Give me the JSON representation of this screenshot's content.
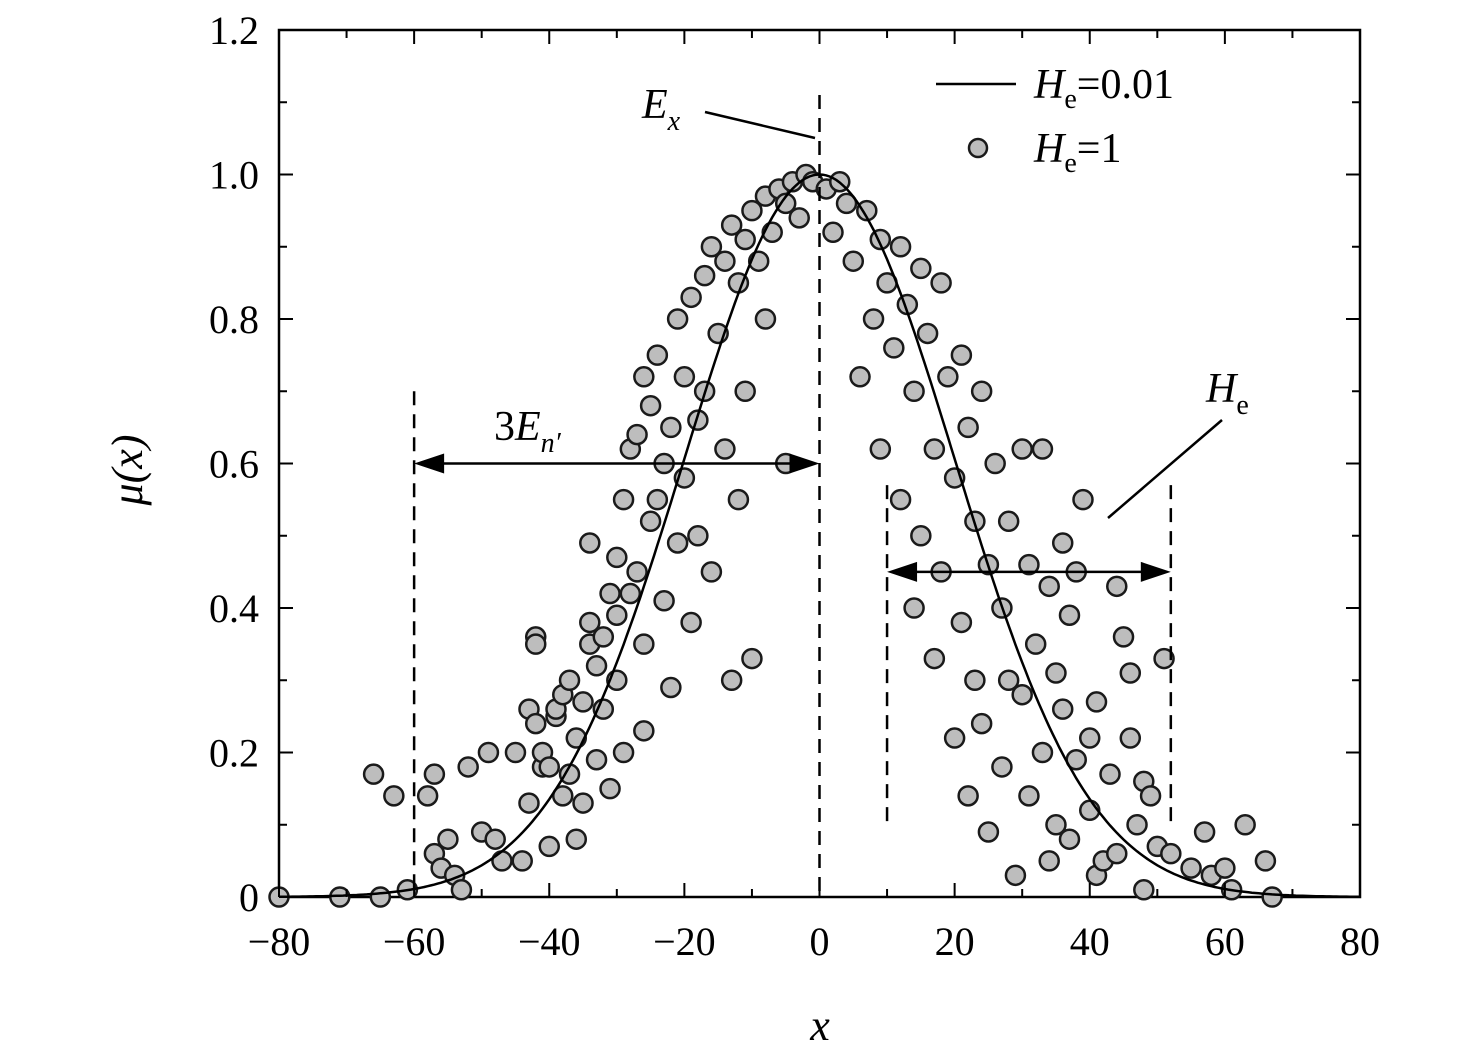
{
  "chart_data": {
    "type": "scatter",
    "xlabel": "x",
    "ylabel": "μ(x)",
    "xlim": [
      -80,
      80
    ],
    "ylim": [
      0,
      1.2
    ],
    "x_ticks": [
      -80,
      -60,
      -40,
      -20,
      0,
      20,
      40,
      60,
      80
    ],
    "x_tick_labels": [
      "−80",
      "−60",
      "−40",
      "−20",
      "0",
      "20",
      "40",
      "60",
      "80"
    ],
    "y_ticks": [
      0,
      0.2,
      0.4,
      0.6,
      0.8,
      1.0,
      1.2
    ],
    "y_tick_labels": [
      "0",
      "0.2",
      "0.4",
      "0.6",
      "0.8",
      "1.0",
      "1.2"
    ],
    "grid": false,
    "legend_position": "top-right",
    "series": [
      {
        "name": "He=0.01",
        "name_parts": {
          "var": "H",
          "sub": "e",
          "rest": "=0.01"
        },
        "kind": "line",
        "function": "exp(-x^2/(2*20^2))",
        "Ex": 0,
        "En": 20
      },
      {
        "name": "He=1",
        "name_parts": {
          "var": "H",
          "sub": "e",
          "rest": "=1"
        },
        "kind": "scatter",
        "marker_fill": "#bdbdbd",
        "marker_edge": "#1a1a1a",
        "points": [
          [
            -80,
            0.0
          ],
          [
            -71,
            0.0
          ],
          [
            -65,
            0.0
          ],
          [
            -61,
            0.01
          ],
          [
            -63,
            0.14
          ],
          [
            -66,
            0.17
          ],
          [
            -58,
            0.14
          ],
          [
            -57,
            0.17
          ],
          [
            -57,
            0.06
          ],
          [
            -56,
            0.04
          ],
          [
            -55,
            0.08
          ],
          [
            -54,
            0.03
          ],
          [
            -53,
            0.01
          ],
          [
            -52,
            0.18
          ],
          [
            -50,
            0.09
          ],
          [
            -49,
            0.2
          ],
          [
            -48,
            0.08
          ],
          [
            -47,
            0.05
          ],
          [
            -45,
            0.2
          ],
          [
            -44,
            0.05
          ],
          [
            -43,
            0.26
          ],
          [
            -43,
            0.13
          ],
          [
            -42,
            0.36
          ],
          [
            -42,
            0.35
          ],
          [
            -42,
            0.24
          ],
          [
            -41,
            0.18
          ],
          [
            -41,
            0.2
          ],
          [
            -40,
            0.18
          ],
          [
            -40,
            0.07
          ],
          [
            -39,
            0.25
          ],
          [
            -39,
            0.26
          ],
          [
            -38,
            0.14
          ],
          [
            -38,
            0.28
          ],
          [
            -37,
            0.17
          ],
          [
            -37,
            0.3
          ],
          [
            -36,
            0.22
          ],
          [
            -36,
            0.08
          ],
          [
            -35,
            0.13
          ],
          [
            -35,
            0.27
          ],
          [
            -34,
            0.35
          ],
          [
            -34,
            0.49
          ],
          [
            -34,
            0.38
          ],
          [
            -33,
            0.32
          ],
          [
            -33,
            0.19
          ],
          [
            -32,
            0.36
          ],
          [
            -32,
            0.26
          ],
          [
            -31,
            0.42
          ],
          [
            -31,
            0.15
          ],
          [
            -30,
            0.3
          ],
          [
            -30,
            0.47
          ],
          [
            -30,
            0.39
          ],
          [
            -29,
            0.2
          ],
          [
            -29,
            0.55
          ],
          [
            -28,
            0.62
          ],
          [
            -28,
            0.42
          ],
          [
            -27,
            0.64
          ],
          [
            -27,
            0.45
          ],
          [
            -26,
            0.72
          ],
          [
            -26,
            0.35
          ],
          [
            -26,
            0.23
          ],
          [
            -25,
            0.52
          ],
          [
            -25,
            0.68
          ],
          [
            -24,
            0.75
          ],
          [
            -24,
            0.55
          ],
          [
            -23,
            0.41
          ],
          [
            -23,
            0.6
          ],
          [
            -22,
            0.29
          ],
          [
            -22,
            0.65
          ],
          [
            -21,
            0.8
          ],
          [
            -21,
            0.49
          ],
          [
            -20,
            0.72
          ],
          [
            -20,
            0.58
          ],
          [
            -19,
            0.83
          ],
          [
            -19,
            0.38
          ],
          [
            -18,
            0.66
          ],
          [
            -18,
            0.5
          ],
          [
            -17,
            0.86
          ],
          [
            -17,
            0.7
          ],
          [
            -16,
            0.9
          ],
          [
            -16,
            0.45
          ],
          [
            -15,
            0.78
          ],
          [
            -14,
            0.88
          ],
          [
            -14,
            0.62
          ],
          [
            -13,
            0.93
          ],
          [
            -13,
            0.3
          ],
          [
            -12,
            0.85
          ],
          [
            -12,
            0.55
          ],
          [
            -11,
            0.91
          ],
          [
            -11,
            0.7
          ],
          [
            -10,
            0.95
          ],
          [
            -10,
            0.33
          ],
          [
            -9,
            0.88
          ],
          [
            -8,
            0.97
          ],
          [
            -8,
            0.8
          ],
          [
            -7,
            0.92
          ],
          [
            -6,
            0.98
          ],
          [
            -5,
            0.96
          ],
          [
            -5,
            0.6
          ],
          [
            -4,
            0.99
          ],
          [
            -3,
            0.94
          ],
          [
            -2,
            1.0
          ],
          [
            -1,
            0.99
          ],
          [
            1,
            0.98
          ],
          [
            2,
            0.92
          ],
          [
            3,
            0.99
          ],
          [
            4,
            0.96
          ],
          [
            5,
            0.88
          ],
          [
            6,
            0.72
          ],
          [
            7,
            0.95
          ],
          [
            8,
            0.8
          ],
          [
            9,
            0.91
          ],
          [
            9,
            0.62
          ],
          [
            10,
            0.85
          ],
          [
            11,
            0.76
          ],
          [
            12,
            0.9
          ],
          [
            12,
            0.55
          ],
          [
            13,
            0.82
          ],
          [
            14,
            0.7
          ],
          [
            14,
            0.4
          ],
          [
            15,
            0.87
          ],
          [
            15,
            0.5
          ],
          [
            16,
            0.78
          ],
          [
            17,
            0.62
          ],
          [
            17,
            0.33
          ],
          [
            18,
            0.85
          ],
          [
            18,
            0.45
          ],
          [
            19,
            0.72
          ],
          [
            20,
            0.58
          ],
          [
            20,
            0.22
          ],
          [
            21,
            0.75
          ],
          [
            21,
            0.38
          ],
          [
            22,
            0.65
          ],
          [
            22,
            0.14
          ],
          [
            23,
            0.52
          ],
          [
            23,
            0.3
          ],
          [
            24,
            0.7
          ],
          [
            24,
            0.24
          ],
          [
            25,
            0.46
          ],
          [
            25,
            0.09
          ],
          [
            26,
            0.6
          ],
          [
            27,
            0.4
          ],
          [
            27,
            0.18
          ],
          [
            28,
            0.52
          ],
          [
            28,
            0.3
          ],
          [
            29,
            0.03
          ],
          [
            30,
            0.62
          ],
          [
            30,
            0.28
          ],
          [
            31,
            0.46
          ],
          [
            31,
            0.14
          ],
          [
            32,
            0.35
          ],
          [
            33,
            0.2
          ],
          [
            33,
            0.62
          ],
          [
            34,
            0.43
          ],
          [
            34,
            0.05
          ],
          [
            35,
            0.31
          ],
          [
            35,
            0.1
          ],
          [
            36,
            0.49
          ],
          [
            36,
            0.26
          ],
          [
            37,
            0.39
          ],
          [
            37,
            0.08
          ],
          [
            38,
            0.19
          ],
          [
            38,
            0.45
          ],
          [
            39,
            0.55
          ],
          [
            40,
            0.12
          ],
          [
            40,
            0.22
          ],
          [
            41,
            0.03
          ],
          [
            41,
            0.27
          ],
          [
            42,
            0.05
          ],
          [
            43,
            0.17
          ],
          [
            44,
            0.43
          ],
          [
            44,
            0.06
          ],
          [
            45,
            0.36
          ],
          [
            46,
            0.22
          ],
          [
            46,
            0.31
          ],
          [
            47,
            0.1
          ],
          [
            48,
            0.16
          ],
          [
            48,
            0.01
          ],
          [
            49,
            0.14
          ],
          [
            50,
            0.07
          ],
          [
            51,
            0.33
          ],
          [
            52,
            0.06
          ],
          [
            55,
            0.04
          ],
          [
            57,
            0.09
          ],
          [
            58,
            0.03
          ],
          [
            60,
            0.04
          ],
          [
            61,
            0.01
          ],
          [
            63,
            0.1
          ],
          [
            66,
            0.05
          ],
          [
            67,
            0.0
          ]
        ]
      }
    ],
    "annotations": {
      "ex": {
        "var": "E",
        "sub": "x",
        "x": 0
      },
      "en": {
        "prefix": "3",
        "var": "E",
        "sub": "n′",
        "from_x": -60,
        "to_x": 0,
        "y": 0.6
      },
      "he": {
        "var": "H",
        "sub": "e",
        "from_x": 10,
        "to_x": 52,
        "y": 0.45
      }
    }
  }
}
